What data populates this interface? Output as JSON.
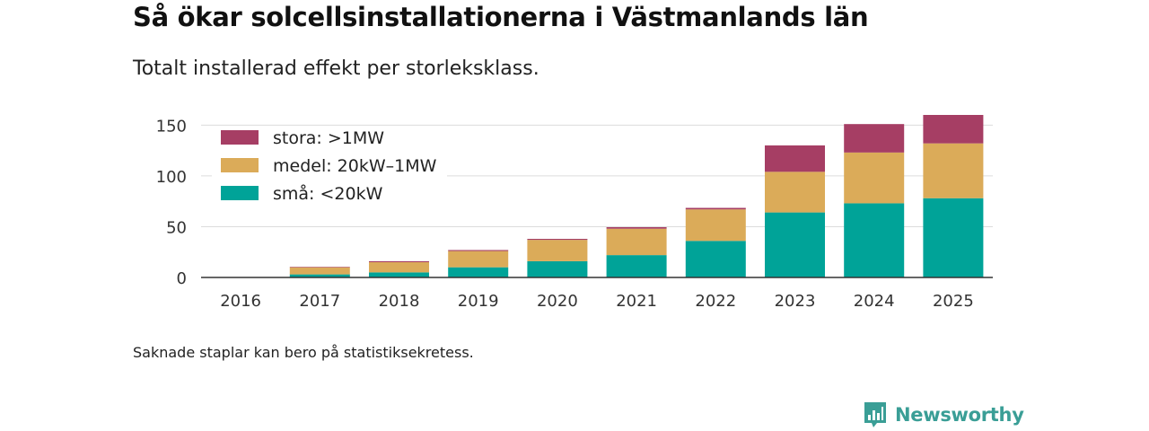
{
  "header": {
    "title": "Så ökar solcellsinstallationerna i Västmanlands län",
    "subtitle": "Totalt installerad effekt per storleksklass."
  },
  "footer": {
    "note": "Saknade staplar kan bero på statistiksekretess.",
    "logo_text": "Newsworthy"
  },
  "colors": {
    "stora": "#a63e64",
    "medel": "#dbab59",
    "sma": "#00a398",
    "grid": "#dcdcdc",
    "axis": "#333333",
    "logo": "#3a9e96"
  },
  "chart_data": {
    "type": "bar",
    "stacked": true,
    "title": "Så ökar solcellsinstallationerna i Västmanlands län",
    "subtitle": "Totalt installerad effekt per storleksklass.",
    "xlabel": "",
    "ylabel": "",
    "ylim": [
      0,
      160
    ],
    "yticks": [
      0,
      50,
      100,
      150
    ],
    "grid": true,
    "legend_position": "top-left",
    "categories": [
      "2016",
      "2017",
      "2018",
      "2019",
      "2020",
      "2021",
      "2022",
      "2023",
      "2024",
      "2025"
    ],
    "series": [
      {
        "name": "små: <20kW",
        "key": "sma",
        "values": [
          0,
          3,
          5,
          10,
          16,
          22,
          36,
          64,
          73,
          78
        ]
      },
      {
        "name": "medel: 20kW–1MW",
        "key": "medel",
        "values": [
          0,
          7,
          10,
          16,
          21,
          26,
          31,
          40,
          50,
          54
        ]
      },
      {
        "name": "stora: >1MW",
        "key": "stora",
        "values": [
          0,
          0.5,
          1,
          1,
          1,
          1.5,
          1.5,
          26,
          28,
          28
        ]
      }
    ],
    "legend_order": [
      "stora",
      "medel",
      "sma"
    ]
  }
}
